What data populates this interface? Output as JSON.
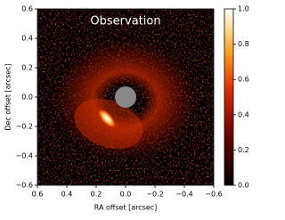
{
  "chart_data": {
    "type": "image",
    "title": "Observation",
    "x_label": "RA offset [arcsec]",
    "y_label": "Dec offset [arcsec]",
    "xlim": [
      0.6,
      -0.6
    ],
    "xticks": [
      0.6,
      0.4,
      0.2,
      {
        "value": 0,
        "label": "0.0"
      },
      {
        "value": -0.2,
        "label": "−0.2"
      },
      {
        "value": -0.4,
        "label": "−0.4"
      },
      {
        "value": -0.6,
        "label": "−0.6"
      }
    ],
    "ylim": [
      -0.6,
      0.6
    ],
    "yticks": [
      {
        "value": -0.6,
        "label": "−0.6"
      },
      {
        "value": -0.4,
        "label": "−0.4"
      },
      {
        "value": -0.2,
        "label": "−0.2"
      },
      {
        "value": 0,
        "label": "0.0"
      },
      0.2,
      0.4,
      0.6
    ],
    "colorbar": {
      "lim": [
        0,
        1
      ],
      "ticks": [
        {
          "value": 0,
          "label": "0.0"
        },
        0.2,
        0.4,
        0.6,
        0.8,
        {
          "value": 1,
          "label": "1.0"
        }
      ]
    }
  }
}
